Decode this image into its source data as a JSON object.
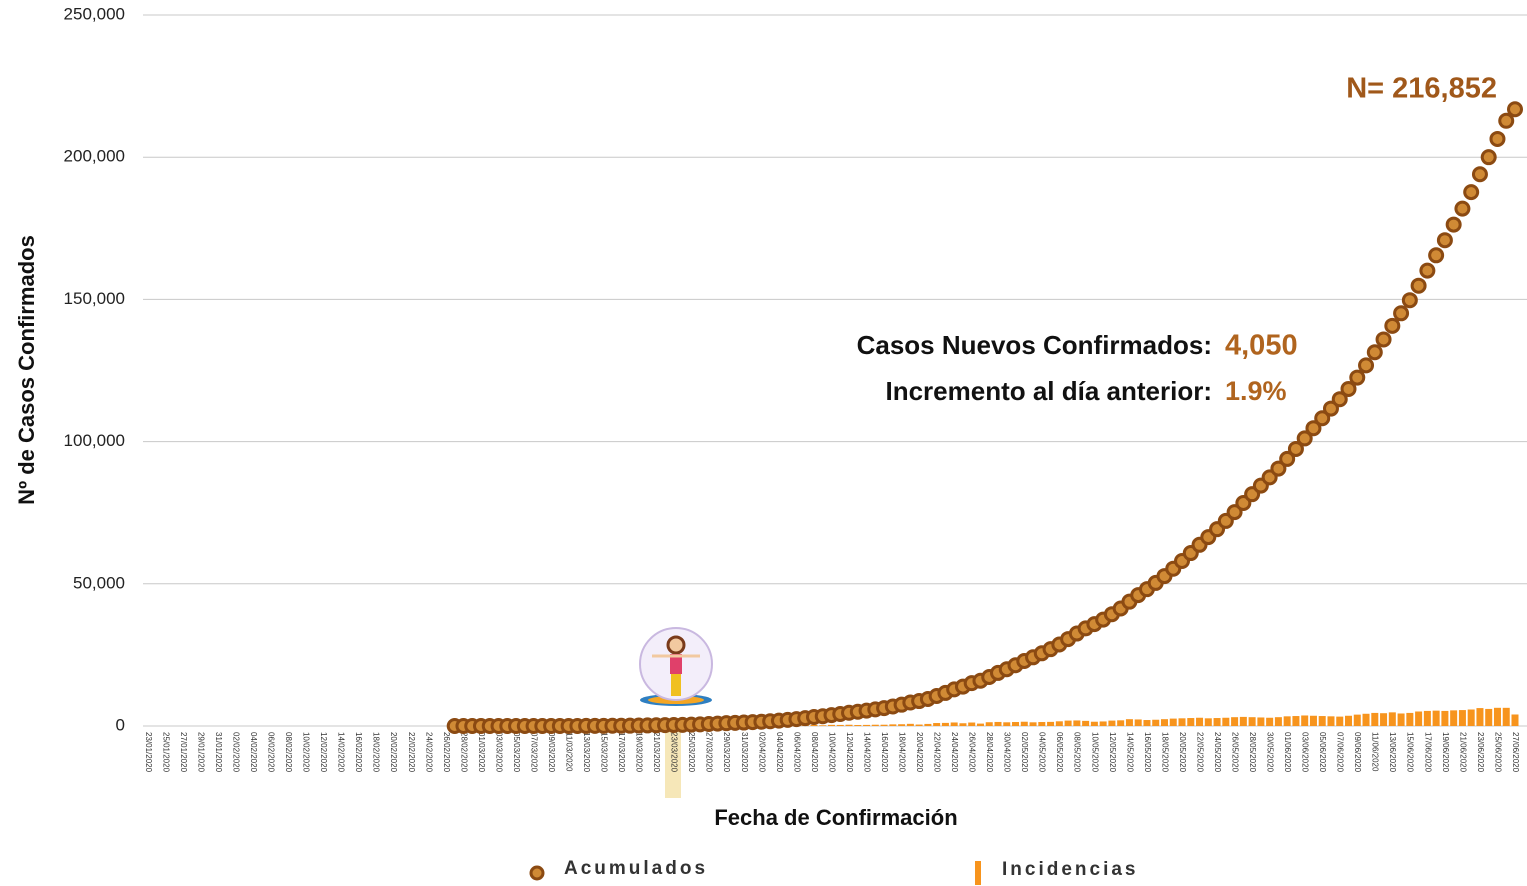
{
  "chart_data": {
    "type": "line-bar",
    "ylabel": "Nº de Casos Confirmados",
    "xlabel": "Fecha de Confirmación",
    "total_label": "N= 216,852",
    "new_cases_label": "Casos Nuevos Confirmados:",
    "new_cases_value": "4,050",
    "increase_label": "Incremento al día anterior:",
    "increase_value": "1.9%",
    "ylim": [
      0,
      250000
    ],
    "yticks": [
      0,
      {
        "value": 50000,
        "label": "50,000"
      },
      {
        "value": 100000,
        "label": "100,000"
      },
      {
        "value": 150000,
        "label": "150,000"
      },
      {
        "value": 200000,
        "label": "200,000"
      },
      {
        "value": 250000,
        "label": "250,000"
      }
    ],
    "grid": true,
    "categories": [
      "23/01/2020",
      null,
      "25/01/2020",
      null,
      "27/01/2020",
      null,
      "29/01/2020",
      null,
      "31/01/2020",
      null,
      "02/02/2020",
      null,
      "04/02/2020",
      null,
      "06/02/2020",
      null,
      "08/02/2020",
      null,
      "10/02/2020",
      null,
      "12/02/2020",
      null,
      "14/02/2020",
      null,
      "16/02/2020",
      null,
      "18/02/2020",
      null,
      "20/02/2020",
      null,
      "22/02/2020",
      null,
      "24/02/2020",
      null,
      "26/02/2020",
      null,
      "28/02/2020",
      null,
      "01/03/2020",
      null,
      "03/03/2020",
      null,
      "05/03/2020",
      null,
      "07/03/2020",
      null,
      "09/03/2020",
      null,
      "11/03/2020",
      null,
      "13/03/2020",
      null,
      "15/03/2020",
      null,
      "17/03/2020",
      null,
      "19/03/2020",
      null,
      "21/03/2020",
      null,
      "23/03/2020",
      null,
      "25/03/2020",
      null,
      "27/03/2020",
      null,
      "29/03/2020",
      null,
      "31/03/2020",
      null,
      "02/04/2020",
      null,
      "04/04/2020",
      null,
      "06/04/2020",
      null,
      "08/04/2020",
      null,
      "10/04/2020",
      null,
      "12/04/2020",
      null,
      "14/04/2020",
      null,
      "16/04/2020",
      null,
      "18/04/2020",
      null,
      "20/04/2020",
      null,
      "22/04/2020",
      null,
      "24/04/2020",
      null,
      "26/04/2020",
      null,
      "28/04/2020",
      null,
      "30/04/2020",
      null,
      "02/05/2020",
      null,
      "04/05/2020",
      null,
      "06/05/2020",
      null,
      "08/05/2020",
      null,
      "10/05/2020",
      null,
      "12/05/2020",
      null,
      "14/05/2020",
      null,
      "16/05/2020",
      null,
      "18/05/2020",
      null,
      "20/05/2020",
      null,
      "22/05/2020",
      null,
      "24/05/2020",
      null,
      "26/05/2020",
      null,
      "28/05/2020",
      null,
      "30/05/2020",
      null,
      "01/06/2020",
      null,
      "03/06/2020",
      null,
      "05/06/2020",
      null,
      "07/06/2020",
      null,
      "09/06/2020",
      null,
      "11/06/2020",
      null,
      "13/06/2020",
      null,
      "15/06/2020",
      null,
      "17/06/2020",
      null,
      "19/06/2020",
      null,
      "21/06/2020",
      null,
      "23/06/2020",
      null,
      "25/06/2020",
      null,
      "27/06/2020"
    ],
    "series": [
      {
        "name": "Acumulados",
        "kind": "line",
        "color": "#d08a35",
        "edge": "#8b4a12",
        "values": [
          null,
          null,
          null,
          null,
          null,
          null,
          null,
          null,
          null,
          null,
          null,
          null,
          null,
          null,
          null,
          null,
          null,
          null,
          null,
          null,
          null,
          null,
          null,
          null,
          null,
          null,
          null,
          null,
          null,
          null,
          null,
          null,
          null,
          null,
          null,
          1,
          2,
          4,
          5,
          5,
          5,
          5,
          5,
          6,
          7,
          7,
          7,
          7,
          11,
          12,
          26,
          41,
          53,
          82,
          93,
          118,
          164,
          203,
          251,
          316,
          367,
          405,
          475,
          585,
          717,
          848,
          993,
          1094,
          1215,
          1378,
          1510,
          1688,
          1890,
          2143,
          2439,
          2785,
          3181,
          3441,
          3844,
          4219,
          4661,
          5014,
          5399,
          5847,
          6297,
          6875,
          7497,
          8261,
          8772,
          9501,
          10544,
          11633,
          12872,
          13842,
          15065,
          15911,
          17237,
          18662,
          19962,
          21362,
          22862,
          24162,
          25562,
          27012,
          28662,
          30562,
          32512,
          34312,
          35812,
          37412,
          39312,
          41312,
          43712,
          46012,
          48112,
          50312,
          52712,
          55312,
          58012,
          60812,
          63712,
          66412,
          69212,
          72112,
          75212,
          78412,
          81512,
          84512,
          87412,
          90512,
          93912,
          97412,
          101112,
          104712,
          108212,
          111612,
          114912,
          118512,
          122512,
          126812,
          131412,
          135912,
          140712,
          145112,
          149712,
          154812,
          160112,
          165512,
          170812,
          176312,
          181912,
          187712,
          194012,
          200012,
          206412,
          212802,
          216852
        ]
      },
      {
        "name": "Incidencias",
        "kind": "bar",
        "color": "#f7941d",
        "values": [
          null,
          null,
          null,
          null,
          null,
          null,
          null,
          null,
          null,
          null,
          null,
          null,
          null,
          null,
          null,
          null,
          null,
          null,
          null,
          null,
          null,
          null,
          null,
          null,
          null,
          null,
          null,
          null,
          null,
          null,
          null,
          null,
          null,
          null,
          null,
          1,
          1,
          2,
          1,
          0,
          0,
          0,
          0,
          1,
          1,
          0,
          0,
          0,
          4,
          1,
          14,
          15,
          12,
          29,
          11,
          25,
          46,
          39,
          48,
          65,
          51,
          38,
          70,
          110,
          132,
          131,
          145,
          101,
          121,
          163,
          132,
          178,
          202,
          253,
          296,
          346,
          396,
          260,
          403,
          375,
          442,
          353,
          385,
          448,
          450,
          578,
          622,
          764,
          511,
          729,
          1043,
          1089,
          1239,
          970,
          1223,
          846,
          1326,
          1425,
          1300,
          1400,
          1500,
          1300,
          1400,
          1450,
          1650,
          1900,
          1950,
          1800,
          1500,
          1600,
          1900,
          2000,
          2400,
          2300,
          2100,
          2200,
          2400,
          2600,
          2700,
          2800,
          2900,
          2700,
          2800,
          2900,
          3100,
          3200,
          3100,
          3000,
          2900,
          3100,
          3400,
          3500,
          3700,
          3600,
          3500,
          3400,
          3300,
          3600,
          4000,
          4300,
          4600,
          4500,
          4800,
          4400,
          4600,
          5100,
          5300,
          5400,
          5300,
          5500,
          5600,
          5800,
          6300,
          6000,
          6400,
          6390,
          4050
        ]
      }
    ]
  }
}
